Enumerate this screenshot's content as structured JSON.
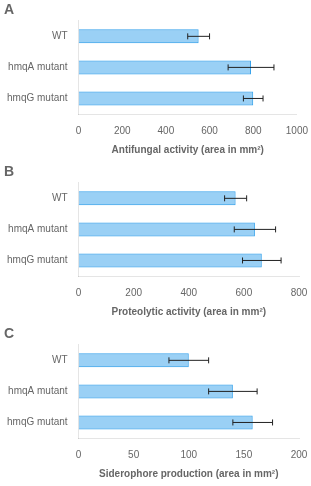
{
  "chart_data": [
    {
      "type": "bar",
      "orientation": "horizontal",
      "title": "A",
      "xlabel": "Antifungal activity (area in mm²)",
      "categories": [
        "WT",
        "hmqA mutant",
        "hmqG mutant"
      ],
      "values": [
        550,
        790,
        800
      ],
      "errors": [
        50,
        105,
        45
      ],
      "xlim": [
        0,
        1000
      ],
      "xticks": [
        0,
        200,
        400,
        600,
        800,
        1000
      ],
      "grid": false
    },
    {
      "type": "bar",
      "orientation": "horizontal",
      "title": "B",
      "xlabel": "Proteolytic activity (area in mm²)",
      "categories": [
        "WT",
        "hmqA mutant",
        "hmqG mutant"
      ],
      "values": [
        570,
        640,
        665
      ],
      "errors": [
        40,
        75,
        70
      ],
      "xlim": [
        0,
        800
      ],
      "xticks": [
        0,
        200,
        400,
        600,
        800
      ],
      "grid": false
    },
    {
      "type": "bar",
      "orientation": "horizontal",
      "title": "C",
      "xlabel": "Siderophore production (area in mm²)",
      "categories": [
        "WT",
        "hmqA mutant",
        "hmqG mutant"
      ],
      "values": [
        100,
        140,
        158
      ],
      "errors": [
        18,
        22,
        18
      ],
      "xlim": [
        0,
        200
      ],
      "xticks": [
        0,
        50,
        100,
        150,
        200
      ],
      "grid": false
    }
  ]
}
